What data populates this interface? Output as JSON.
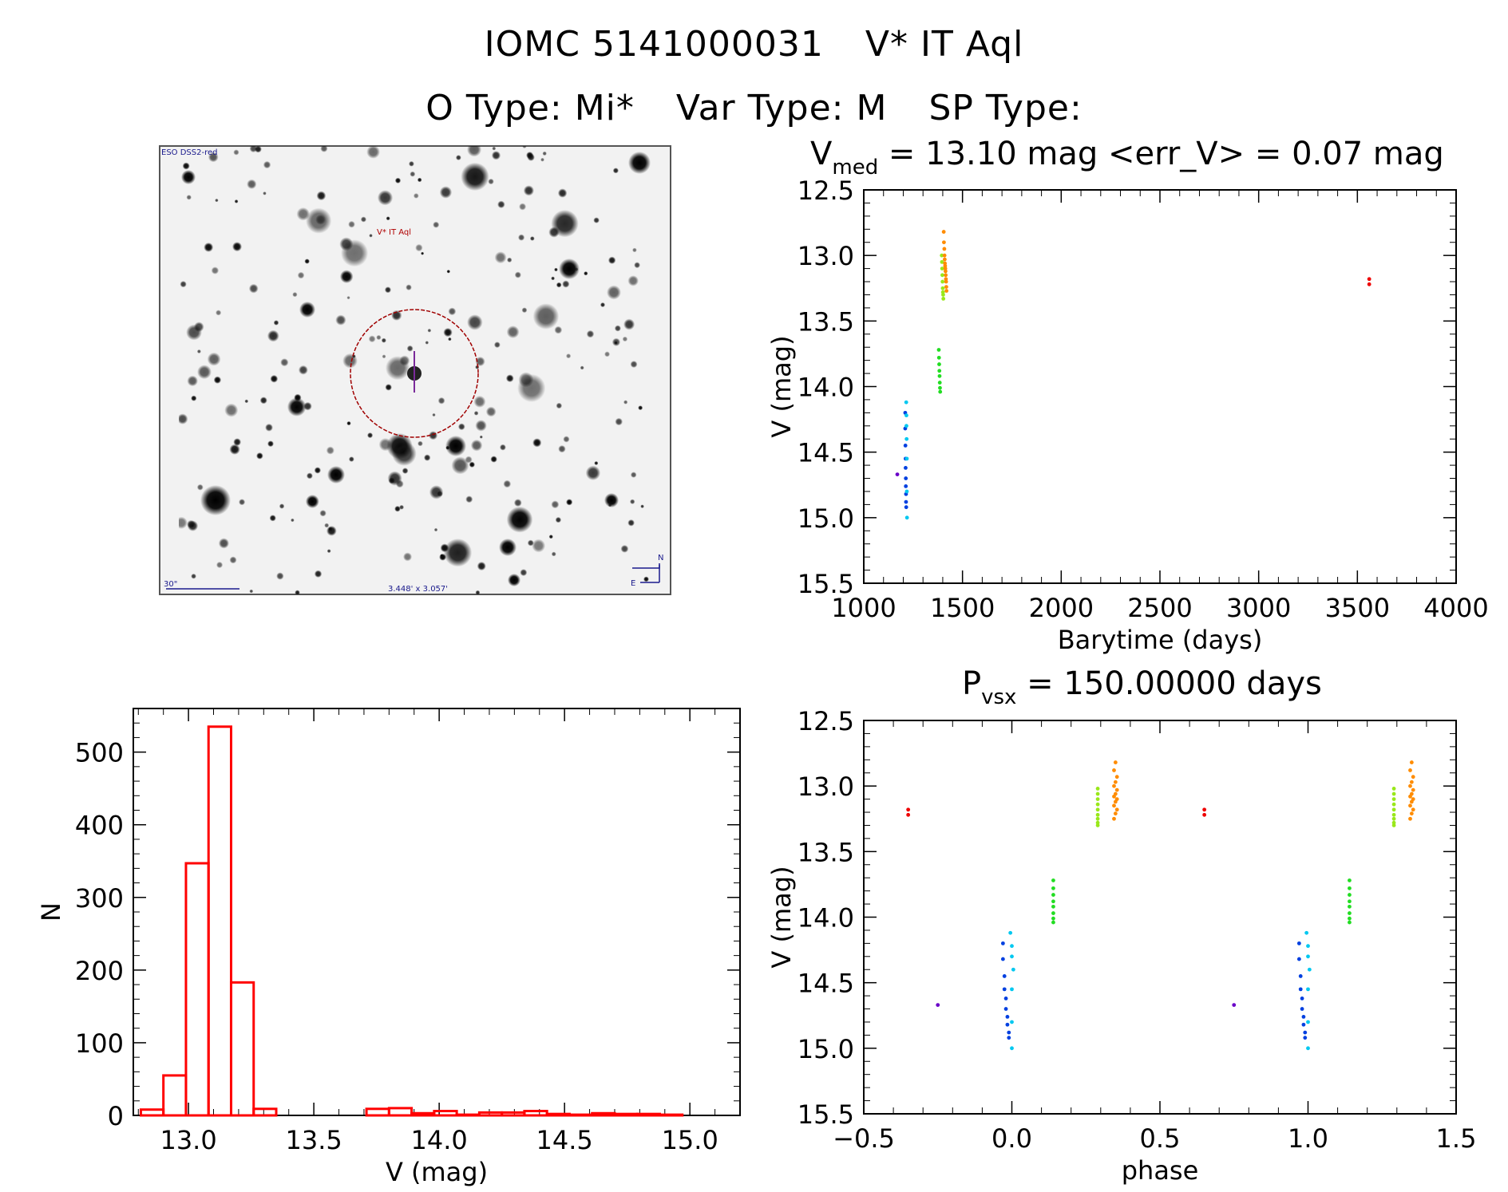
{
  "header": {
    "line1": [
      "IOMC 5141000031",
      "V* IT Aql"
    ],
    "line2": [
      "O Type: Mi*",
      "Var Type: M",
      "SP Type:"
    ]
  },
  "finder": {
    "survey_label": "ESO DSS2-red",
    "target_label": "V* IT Aql",
    "scale_label": "30\"",
    "fov_label": "3.448' x 3.057'",
    "north_label": "N",
    "east_label": "E"
  },
  "colors": {
    "hist": "#ff0000",
    "violet": "#6a00c8",
    "blue": "#0040e0",
    "cyan": "#00c8f0",
    "green": "#22dd22",
    "yellowgreen": "#99e81a",
    "orange": "#ff8c00",
    "red": "#ee0000"
  },
  "chart_data": [
    {
      "id": "lightcurve",
      "type": "scatter",
      "title_main": "V",
      "title_sub": "med",
      "title_rest": " =  13.10 mag <err_V> = 0.07 mag",
      "xlabel": "Barytime (days)",
      "ylabel": "V (mag)",
      "xlim": [
        1000,
        4000
      ],
      "ylim": [
        15.5,
        12.5
      ],
      "xticks": [
        "1000",
        "1500",
        "2000",
        "2500",
        "3000",
        "3500",
        "4000"
      ],
      "yticks": [
        "12.5",
        "13.0",
        "13.5",
        "14.0",
        "14.5",
        "15.0",
        "15.5"
      ],
      "series": [
        {
          "color": "violet",
          "x": [
            1170
          ],
          "y": [
            14.67
          ]
        },
        {
          "color": "blue",
          "x": [
            1210,
            1210,
            1211,
            1212,
            1212,
            1213,
            1213,
            1214,
            1214,
            1215
          ],
          "y": [
            14.2,
            14.32,
            14.45,
            14.55,
            14.62,
            14.7,
            14.76,
            14.82,
            14.88,
            14.92
          ]
        },
        {
          "color": "cyan",
          "x": [
            1215,
            1216,
            1216,
            1217,
            1218,
            1218,
            1219
          ],
          "y": [
            14.12,
            14.22,
            14.3,
            14.4,
            14.55,
            14.8,
            15.0
          ]
        },
        {
          "color": "green",
          "x": [
            1380,
            1381,
            1382,
            1383,
            1384,
            1385,
            1386,
            1387
          ],
          "y": [
            13.72,
            13.78,
            13.83,
            13.88,
            13.92,
            13.97,
            14.01,
            14.04
          ]
        },
        {
          "color": "yellowgreen",
          "x": [
            1395,
            1396,
            1397,
            1398,
            1399,
            1400,
            1401,
            1402,
            1403
          ],
          "y": [
            13.0,
            13.05,
            13.1,
            13.15,
            13.2,
            13.25,
            13.28,
            13.3,
            13.33
          ]
        },
        {
          "color": "orange",
          "x": [
            1405,
            1406,
            1408,
            1409,
            1410,
            1411,
            1412,
            1413,
            1414,
            1415,
            1416,
            1417,
            1418,
            1419
          ],
          "y": [
            12.82,
            12.9,
            12.95,
            13.0,
            13.03,
            13.06,
            13.08,
            13.1,
            13.12,
            13.15,
            13.18,
            13.2,
            13.24,
            13.27
          ]
        },
        {
          "color": "red",
          "x": [
            3560,
            3560
          ],
          "y": [
            13.18,
            13.22
          ]
        }
      ]
    },
    {
      "id": "histogram",
      "type": "bar",
      "xlabel": "V (mag)",
      "ylabel": "N",
      "xlim": [
        12.78,
        15.2
      ],
      "ylim": [
        0,
        560
      ],
      "xticks": [
        "13.0",
        "13.5",
        "14.0",
        "14.5",
        "15.0"
      ],
      "yticks": [
        "0",
        "100",
        "200",
        "300",
        "400",
        "500"
      ],
      "bin_edges": [
        12.81,
        12.9,
        12.99,
        13.08,
        13.17,
        13.26,
        13.35,
        13.44,
        13.53,
        13.62,
        13.71,
        13.8,
        13.89,
        13.98,
        14.07,
        14.16,
        14.25,
        14.34,
        14.43,
        14.52,
        14.61,
        14.7,
        14.79,
        14.88,
        14.97,
        15.06
      ],
      "counts": [
        8,
        55,
        347,
        535,
        183,
        9,
        0,
        0,
        0,
        0,
        9,
        10,
        3,
        6,
        1,
        4,
        4,
        6,
        2,
        1,
        3,
        2,
        2,
        1,
        0
      ]
    },
    {
      "id": "phased",
      "type": "scatter",
      "title_main": "P",
      "title_sub": "vsx",
      "title_rest": " =  150.00000 days",
      "xlabel": "phase",
      "ylabel": "V (mag)",
      "xlim": [
        -0.5,
        1.5
      ],
      "ylim": [
        15.5,
        12.5
      ],
      "xticks": [
        "−0.5",
        "0.0",
        "0.5",
        "1.0",
        "1.5"
      ],
      "yticks": [
        "12.5",
        "13.0",
        "13.5",
        "14.0",
        "14.5",
        "15.0",
        "15.5"
      ],
      "series": [
        {
          "color": "violet",
          "x": [
            -0.25,
            0.75
          ],
          "y": [
            14.67,
            14.67
          ]
        },
        {
          "color": "blue",
          "x": [
            -0.03,
            -0.03,
            -0.025,
            -0.025,
            -0.02,
            -0.02,
            -0.015,
            -0.015,
            -0.01,
            -0.01,
            0.97,
            0.97,
            0.975,
            0.975,
            0.98,
            0.98,
            0.985,
            0.985,
            0.99,
            0.99
          ],
          "y": [
            14.2,
            14.32,
            14.45,
            14.55,
            14.62,
            14.7,
            14.76,
            14.82,
            14.88,
            14.92,
            14.2,
            14.32,
            14.45,
            14.55,
            14.62,
            14.7,
            14.76,
            14.82,
            14.88,
            14.92
          ]
        },
        {
          "color": "cyan",
          "x": [
            -0.005,
            0.0,
            0.0,
            0.005,
            0.0,
            0.0,
            0.0,
            0.995,
            1.0,
            1.0,
            1.005,
            1.0,
            1.0,
            1.0
          ],
          "y": [
            14.12,
            14.22,
            14.3,
            14.4,
            14.55,
            14.8,
            15.0,
            14.12,
            14.22,
            14.3,
            14.4,
            14.55,
            14.8,
            15.0
          ]
        },
        {
          "color": "green",
          "x": [
            0.14,
            0.14,
            0.14,
            0.14,
            0.14,
            0.14,
            0.14,
            0.14,
            1.14,
            1.14,
            1.14,
            1.14,
            1.14,
            1.14,
            1.14,
            1.14
          ],
          "y": [
            13.72,
            13.78,
            13.83,
            13.88,
            13.92,
            13.97,
            14.01,
            14.04,
            13.72,
            13.78,
            13.83,
            13.88,
            13.92,
            13.97,
            14.01,
            14.04
          ]
        },
        {
          "color": "yellowgreen",
          "x": [
            0.29,
            0.29,
            0.29,
            0.29,
            0.29,
            0.29,
            0.29,
            0.29,
            0.29,
            1.29,
            1.29,
            1.29,
            1.29,
            1.29,
            1.29,
            1.29,
            1.29,
            1.29
          ],
          "y": [
            13.02,
            13.06,
            13.1,
            13.14,
            13.18,
            13.22,
            13.25,
            13.28,
            13.3,
            13.02,
            13.06,
            13.1,
            13.14,
            13.18,
            13.22,
            13.25,
            13.28,
            13.3
          ]
        },
        {
          "color": "orange",
          "x": [
            0.35,
            0.345,
            0.355,
            0.35,
            0.345,
            0.355,
            0.35,
            0.345,
            0.355,
            0.35,
            0.345,
            0.355,
            0.35,
            0.345,
            1.35,
            1.345,
            1.355,
            1.35,
            1.345,
            1.355,
            1.35,
            1.345,
            1.355,
            1.35,
            1.345,
            1.355,
            1.35,
            1.345
          ],
          "y": [
            12.82,
            12.88,
            12.93,
            12.97,
            13.0,
            13.03,
            13.06,
            13.08,
            13.1,
            13.12,
            13.15,
            13.18,
            13.21,
            13.25,
            12.82,
            12.88,
            12.93,
            12.97,
            13.0,
            13.03,
            13.06,
            13.08,
            13.1,
            13.12,
            13.15,
            13.18,
            13.21,
            13.25
          ]
        },
        {
          "color": "red",
          "x": [
            -0.35,
            -0.35,
            0.65,
            0.65
          ],
          "y": [
            13.18,
            13.22,
            13.18,
            13.22
          ]
        }
      ]
    }
  ]
}
